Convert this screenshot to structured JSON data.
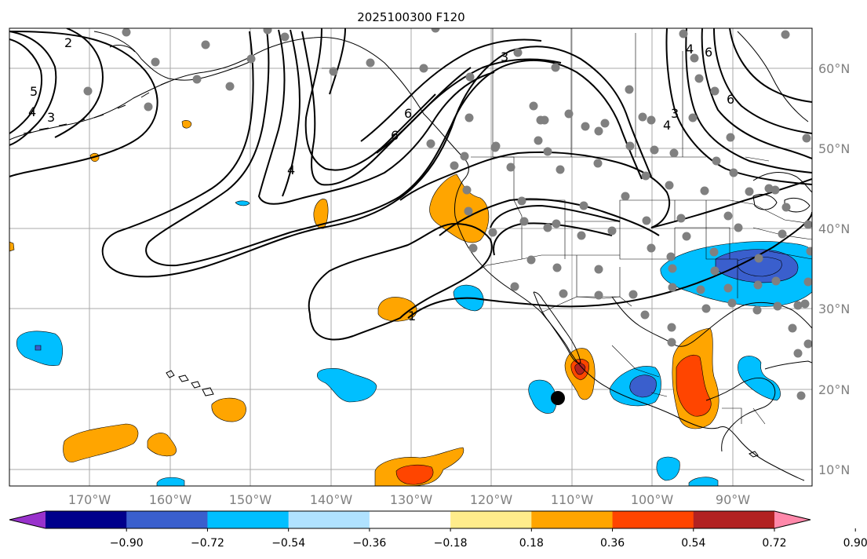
{
  "title": "2025100300 F120",
  "lat_labels": [
    "60°N",
    "50°N",
    "40°N",
    "30°N",
    "20°N",
    "10°N"
  ],
  "lon_labels": [
    "170°W",
    "160°W",
    "150°W",
    "140°W",
    "130°W",
    "120°W",
    "110°W",
    "100°W",
    "90°W"
  ],
  "colorbar": {
    "colors": [
      "#9932cc",
      "#00008b",
      "#3a5fcd",
      "#00bfff",
      "#b0e2ff",
      "#ffffff",
      "#ffec8b",
      "#ffa500",
      "#ff4500",
      "#b22222",
      "#ff88aa"
    ],
    "tick_labels": [
      "−0.90",
      "−0.72",
      "−0.54",
      "−0.36",
      "−0.18",
      "0.18",
      "0.36",
      "0.54",
      "0.72",
      "0.90"
    ],
    "extend": "both"
  },
  "contour_labels": [
    "2",
    "5",
    "4",
    "3",
    "4",
    "6",
    "6",
    "3",
    "4",
    "6",
    "3",
    "4",
    "6",
    "1"
  ],
  "colors": {
    "land_outline": "#000000",
    "grid": "#a9a9a9",
    "station": "#808080",
    "contour": "#000000"
  }
}
